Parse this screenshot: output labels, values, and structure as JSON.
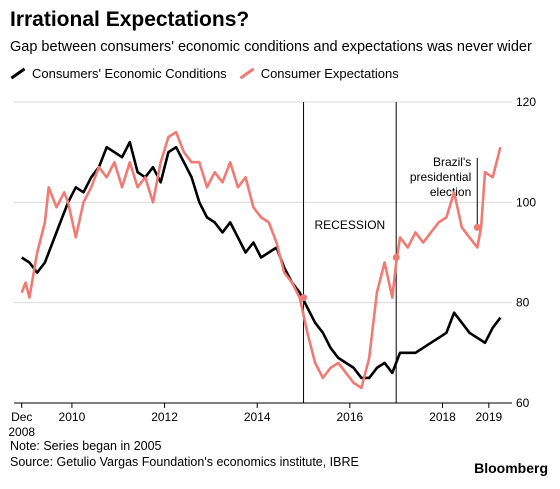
{
  "header": {
    "title": "Irrational Expectations?",
    "subtitle": "Gap between consumers' economic conditions and expectations was never wider"
  },
  "legend": {
    "items": [
      {
        "label": "Consumers' Economic Conditions",
        "color": "#000000"
      },
      {
        "label": "Consumer Expectations",
        "color": "#f07a74"
      }
    ]
  },
  "footer": {
    "note": "Note: Series began in 2005",
    "source": "Source: Getulio Vargas Foundation's economics institute, IBRE",
    "brand": "Bloomberg"
  },
  "chart_data": {
    "type": "line",
    "x_ticks": [
      {
        "t": 2008.917,
        "label": "Dec",
        "sublabel": "2008"
      },
      {
        "t": 2010,
        "label": "2010"
      },
      {
        "t": 2012,
        "label": "2012"
      },
      {
        "t": 2014,
        "label": "2014"
      },
      {
        "t": 2016,
        "label": "2016"
      },
      {
        "t": 2018,
        "label": "2018"
      },
      {
        "t": 2019,
        "label": "2019"
      }
    ],
    "y_ticks": [
      60,
      80,
      100,
      120
    ],
    "ylim": [
      60,
      120
    ],
    "y_axis_position": "right",
    "annotations": [
      {
        "t": 2015.0,
        "label": "RECESSION"
      },
      {
        "t": 2017.0,
        "label": ""
      },
      {
        "t": 2018.75,
        "label": "Brazil's presidential election"
      }
    ],
    "series": [
      {
        "name": "Consumers' Economic Conditions",
        "color": "#000000",
        "points": [
          [
            2008.917,
            89
          ],
          [
            2009.083,
            88
          ],
          [
            2009.25,
            86
          ],
          [
            2009.417,
            88
          ],
          [
            2009.583,
            92
          ],
          [
            2009.75,
            96
          ],
          [
            2009.917,
            100
          ],
          [
            2010.083,
            103
          ],
          [
            2010.25,
            102
          ],
          [
            2010.417,
            105
          ],
          [
            2010.583,
            107
          ],
          [
            2010.75,
            111
          ],
          [
            2010.917,
            110
          ],
          [
            2011.083,
            109
          ],
          [
            2011.25,
            112
          ],
          [
            2011.417,
            106
          ],
          [
            2011.583,
            105
          ],
          [
            2011.75,
            107
          ],
          [
            2011.917,
            104
          ],
          [
            2012.083,
            110
          ],
          [
            2012.25,
            111
          ],
          [
            2012.417,
            108
          ],
          [
            2012.583,
            105
          ],
          [
            2012.75,
            100
          ],
          [
            2012.917,
            97
          ],
          [
            2013.083,
            96
          ],
          [
            2013.25,
            94
          ],
          [
            2013.417,
            96
          ],
          [
            2013.583,
            93
          ],
          [
            2013.75,
            90
          ],
          [
            2013.917,
            92
          ],
          [
            2014.083,
            89
          ],
          [
            2014.25,
            90
          ],
          [
            2014.417,
            91
          ],
          [
            2014.583,
            87
          ],
          [
            2014.75,
            84
          ],
          [
            2014.917,
            82
          ],
          [
            2015.083,
            79
          ],
          [
            2015.25,
            76
          ],
          [
            2015.417,
            74
          ],
          [
            2015.583,
            71
          ],
          [
            2015.75,
            69
          ],
          [
            2015.917,
            68
          ],
          [
            2016.083,
            67
          ],
          [
            2016.25,
            65
          ],
          [
            2016.417,
            65
          ],
          [
            2016.583,
            67
          ],
          [
            2016.75,
            68
          ],
          [
            2016.917,
            66
          ],
          [
            2017.083,
            70
          ],
          [
            2017.25,
            70
          ],
          [
            2017.417,
            70
          ],
          [
            2017.583,
            71
          ],
          [
            2017.75,
            72
          ],
          [
            2017.917,
            73
          ],
          [
            2018.083,
            74
          ],
          [
            2018.25,
            78
          ],
          [
            2018.417,
            76
          ],
          [
            2018.583,
            74
          ],
          [
            2018.75,
            73
          ],
          [
            2018.917,
            72
          ],
          [
            2019.083,
            75
          ],
          [
            2019.25,
            77
          ]
        ]
      },
      {
        "name": "Consumer Expectations",
        "color": "#f07a74",
        "points": [
          [
            2008.917,
            82
          ],
          [
            2009.0,
            84
          ],
          [
            2009.083,
            81
          ],
          [
            2009.25,
            90
          ],
          [
            2009.417,
            96
          ],
          [
            2009.5,
            103
          ],
          [
            2009.667,
            99
          ],
          [
            2009.833,
            102
          ],
          [
            2009.917,
            100
          ],
          [
            2010.083,
            93
          ],
          [
            2010.25,
            100
          ],
          [
            2010.417,
            103
          ],
          [
            2010.583,
            107
          ],
          [
            2010.75,
            105
          ],
          [
            2010.917,
            108
          ],
          [
            2011.083,
            103
          ],
          [
            2011.25,
            108
          ],
          [
            2011.417,
            103
          ],
          [
            2011.583,
            105
          ],
          [
            2011.75,
            100
          ],
          [
            2011.917,
            108
          ],
          [
            2012.083,
            113
          ],
          [
            2012.25,
            114
          ],
          [
            2012.417,
            110
          ],
          [
            2012.583,
            108
          ],
          [
            2012.75,
            108
          ],
          [
            2012.917,
            103
          ],
          [
            2013.083,
            106
          ],
          [
            2013.25,
            104
          ],
          [
            2013.417,
            108
          ],
          [
            2013.583,
            103
          ],
          [
            2013.75,
            105
          ],
          [
            2013.917,
            99
          ],
          [
            2014.083,
            97
          ],
          [
            2014.25,
            96
          ],
          [
            2014.417,
            92
          ],
          [
            2014.583,
            86
          ],
          [
            2014.75,
            84
          ],
          [
            2014.917,
            81
          ],
          [
            2015.083,
            74
          ],
          [
            2015.25,
            68
          ],
          [
            2015.417,
            65
          ],
          [
            2015.583,
            67
          ],
          [
            2015.75,
            68
          ],
          [
            2015.917,
            66
          ],
          [
            2016.083,
            64
          ],
          [
            2016.25,
            63
          ],
          [
            2016.417,
            69
          ],
          [
            2016.583,
            82
          ],
          [
            2016.75,
            88
          ],
          [
            2016.917,
            81
          ],
          [
            2017.0,
            88
          ],
          [
            2017.083,
            93
          ],
          [
            2017.25,
            91
          ],
          [
            2017.417,
            94
          ],
          [
            2017.583,
            92
          ],
          [
            2017.75,
            94
          ],
          [
            2017.917,
            96
          ],
          [
            2018.083,
            97
          ],
          [
            2018.25,
            102
          ],
          [
            2018.417,
            95
          ],
          [
            2018.583,
            93
          ],
          [
            2018.75,
            91
          ],
          [
            2018.833,
            95
          ],
          [
            2018.917,
            106
          ],
          [
            2019.083,
            105
          ],
          [
            2019.25,
            111
          ]
        ]
      }
    ],
    "markers": [
      {
        "t": 2015.0,
        "v": 81
      },
      {
        "t": 2017.0,
        "v": 89
      },
      {
        "t": 2018.75,
        "v": 95
      }
    ]
  }
}
